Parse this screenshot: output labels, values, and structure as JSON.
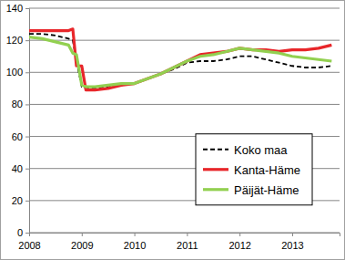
{
  "chart_data": {
    "type": "line",
    "x": [
      2008,
      2008.25,
      2008.5,
      2008.75,
      2008.83,
      2008.9,
      2009,
      2009.08,
      2009.25,
      2009.5,
      2009.75,
      2010,
      2010.25,
      2010.5,
      2010.75,
      2011,
      2011.25,
      2011.5,
      2011.75,
      2012,
      2012.25,
      2012.5,
      2012.75,
      2013,
      2013.25,
      2013.5,
      2013.75
    ],
    "series": [
      {
        "name": "Koko maa",
        "color": "#000000",
        "line_style": "dashed",
        "values": [
          124,
          124,
          123,
          121,
          120,
          107,
          91,
          90,
          90,
          91,
          92,
          93,
          96,
          99,
          102,
          106,
          107,
          107,
          108,
          110,
          110,
          108,
          106,
          104,
          103,
          103,
          104
        ]
      },
      {
        "name": "Kanta-Häme",
        "color": "#e8262a",
        "line_style": "solid",
        "values": [
          126,
          126,
          126,
          126,
          127,
          104,
          104,
          89,
          89,
          90,
          92,
          93,
          96,
          99,
          103,
          107,
          111,
          112,
          113,
          115,
          114,
          114,
          113,
          114,
          114,
          115,
          117
        ]
      },
      {
        "name": "Päijät-Häme",
        "color": "#92d050",
        "line_style": "solid",
        "values": [
          122,
          121,
          119,
          117,
          112,
          111,
          92,
          91,
          91,
          92,
          93,
          93,
          96,
          99,
          103,
          107,
          110,
          111,
          113,
          115,
          114,
          113,
          112,
          110,
          109,
          108,
          107
        ]
      }
    ],
    "xlim": [
      2008,
      2013.9
    ],
    "xticks": [
      2008,
      2009,
      2010,
      2011,
      2012,
      2013
    ],
    "ylim": [
      0,
      140
    ],
    "yticks": [
      0,
      20,
      40,
      60,
      80,
      100,
      120,
      140
    ],
    "grid": true,
    "legend": "right"
  }
}
